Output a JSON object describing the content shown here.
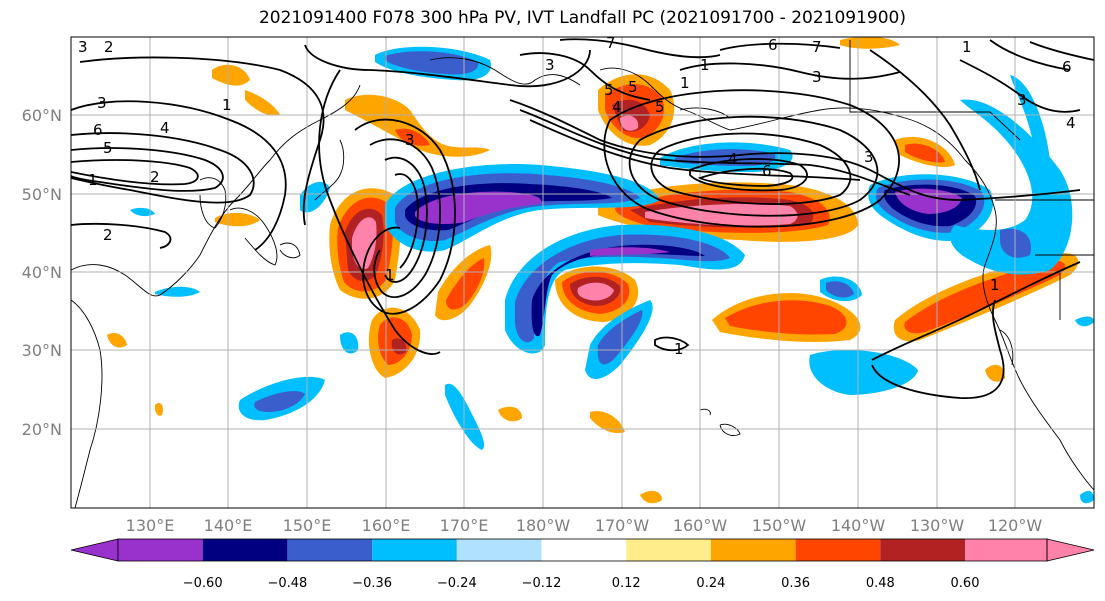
{
  "title": "2021091400 F078 300 hPa PV, IVT Landfall PC (2021091700 - 2021091900)",
  "map": {
    "lon_range_east": [
      120,
      250
    ],
    "lat_range": [
      10,
      70
    ],
    "lat_labels": [
      "20°N",
      "30°N",
      "40°N",
      "50°N",
      "60°N"
    ],
    "lat_values": [
      20,
      30,
      40,
      50,
      60
    ],
    "lon_labels": [
      "130°E",
      "140°E",
      "150°E",
      "160°E",
      "170°E",
      "180°W",
      "170°W",
      "160°W",
      "150°W",
      "140°W",
      "130°W",
      "120°W"
    ],
    "lon_values": [
      130,
      140,
      150,
      160,
      170,
      180,
      190,
      200,
      210,
      220,
      230,
      240
    ],
    "grid": true
  },
  "colorbar": {
    "ticks": [
      "−0.60",
      "−0.48",
      "−0.36",
      "−0.24",
      "−0.12",
      "0.12",
      "0.24",
      "0.36",
      "0.48",
      "0.60"
    ],
    "colors": [
      "#9932cc",
      "#000080",
      "#3a5fcd",
      "#00bfff",
      "#b0e2ff",
      "#ffffff",
      "#ffec8b",
      "#ffa500",
      "#ff4500",
      "#b22222",
      "#ff82ab"
    ],
    "extend": "both"
  },
  "contour_labels": [
    "3",
    "2",
    "3",
    "1",
    "6",
    "4",
    "5",
    "1",
    "2",
    "2",
    "1",
    "3",
    "6",
    "7",
    "6",
    "4",
    "3",
    "1",
    "7",
    "3",
    "1",
    "5",
    "5",
    "4",
    "6",
    "3",
    "4",
    "5",
    "3",
    "1",
    "1",
    "1"
  ]
}
